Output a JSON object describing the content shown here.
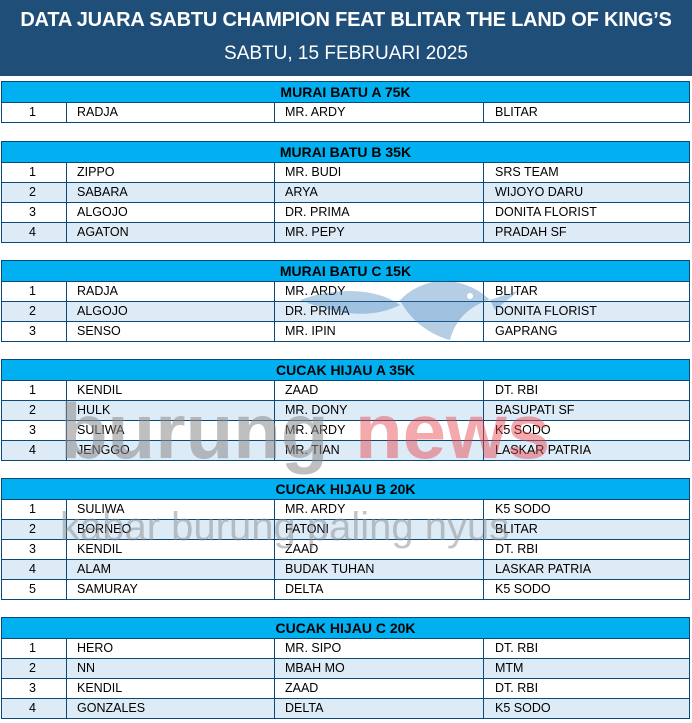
{
  "header": {
    "title": "DATA JUARA SABTU CHAMPION FEAT BLITAR THE LAND OF KING’S",
    "subtitle": "SABTU, 15 FEBRUARI 2025"
  },
  "watermark": {
    "brand_part1": "burung",
    "brand_part2": "news",
    "tagline": "kabar burung paling nyus"
  },
  "sections": [
    {
      "category": "MURAI BATU A 75K",
      "rows": [
        [
          "1",
          "RADJA",
          "MR. ARDY",
          "BLITAR"
        ]
      ]
    },
    {
      "category": "MURAI BATU B 35K",
      "rows": [
        [
          "1",
          "ZIPPO",
          "MR. BUDI",
          "SRS TEAM"
        ],
        [
          "2",
          "SABARA",
          "ARYA",
          "WIJOYO DARU"
        ],
        [
          "3",
          "ALGOJO",
          "DR. PRIMA",
          "DONITA FLORIST"
        ],
        [
          "4",
          "AGATON",
          "MR. PEPY",
          "PRADAH SF"
        ]
      ]
    },
    {
      "category": "MURAI BATU C 15K",
      "rows": [
        [
          "1",
          "RADJA",
          "MR. ARDY",
          "BLITAR"
        ],
        [
          "2",
          "ALGOJO",
          "DR. PRIMA",
          "DONITA FLORIST"
        ],
        [
          "3",
          "SENSO",
          "MR. IPIN",
          "GAPRANG"
        ]
      ]
    },
    {
      "category": "CUCAK HIJAU A 35K",
      "rows": [
        [
          "1",
          "KENDIL",
          "ZAAD",
          "DT. RBI"
        ],
        [
          "2",
          "HULK",
          "MR. DONY",
          "BASUPATI SF"
        ],
        [
          "3",
          "SULIWA",
          "MR. ARDY",
          "K5 SODO"
        ],
        [
          "4",
          "JENGGO",
          "MR. TIAN",
          "LASKAR PATRIA"
        ]
      ]
    },
    {
      "category": "CUCAK HIJAU B 20K",
      "rows": [
        [
          "1",
          "SULIWA",
          "MR. ARDY",
          "K5 SODO"
        ],
        [
          "2",
          "BORNEO",
          "FATONI",
          "BLITAR"
        ],
        [
          "3",
          "KENDIL",
          "ZAAD",
          "DT. RBI"
        ],
        [
          "4",
          "ALAM",
          "BUDAK TUHAN",
          "LASKAR PATRIA"
        ],
        [
          "5",
          "SAMURAY",
          "DELTA",
          "K5 SODO"
        ]
      ]
    },
    {
      "category": "CUCAK HIJAU C 20K",
      "rows": [
        [
          "1",
          "HERO",
          "MR. SIPO",
          "DT. RBI"
        ],
        [
          "2",
          "NN",
          "MBAH MO",
          "MTM"
        ],
        [
          "3",
          "KENDIL",
          "ZAAD",
          "DT. RBI"
        ],
        [
          "4",
          "GONZALES",
          "DELTA",
          "K5 SODO"
        ]
      ]
    }
  ]
}
